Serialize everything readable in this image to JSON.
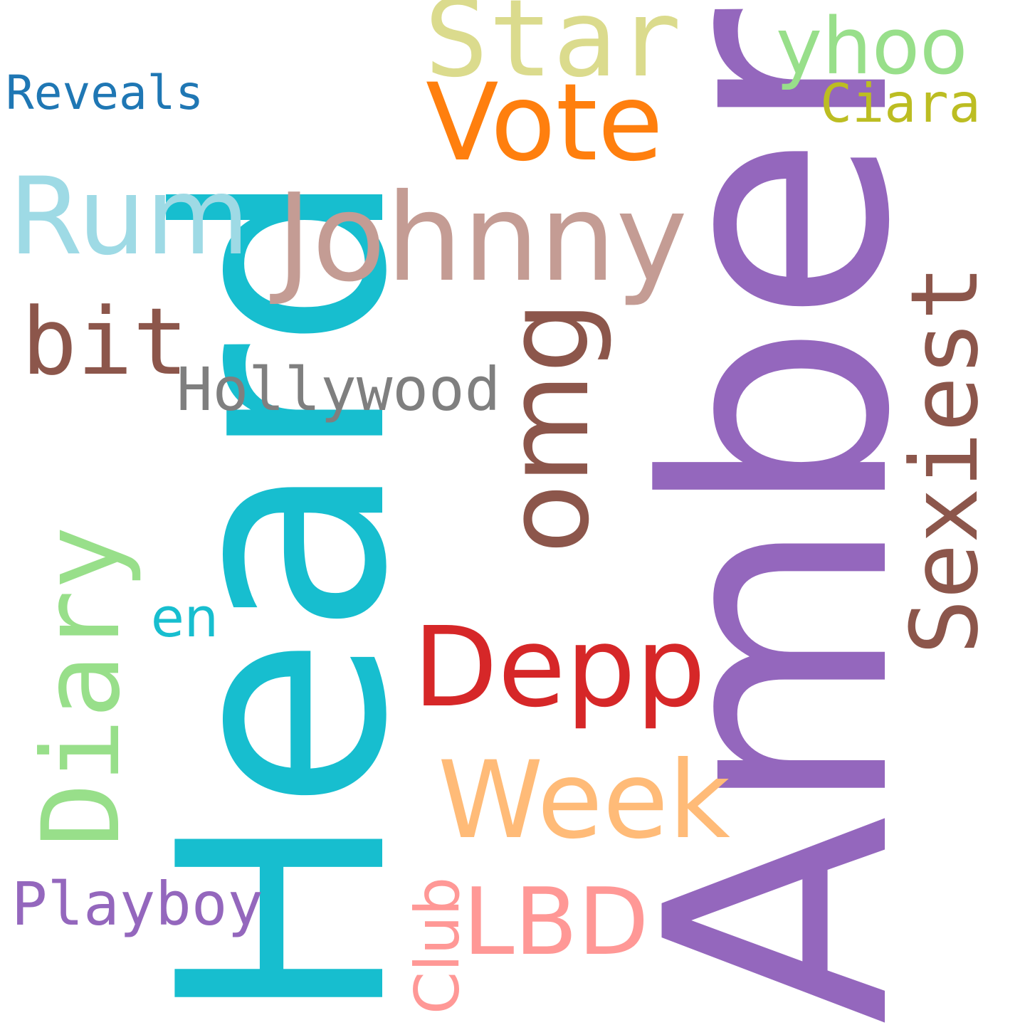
{
  "background": "#ffffff",
  "words": {
    "amber": {
      "text": "Amber",
      "color": "#9467bd"
    },
    "heard": {
      "text": "Heard",
      "color": "#17becf"
    },
    "johnny": {
      "text": "Johnny",
      "color": "#c49c94"
    },
    "star": {
      "text": "Star",
      "color": "#dbdb8d"
    },
    "vote": {
      "text": "Vote",
      "color": "#ff7f0e"
    },
    "rum": {
      "text": "Rum",
      "color": "#9edae5"
    },
    "yhoo": {
      "text": "yhoo",
      "color": "#98df8a"
    },
    "ciara": {
      "text": "Ciara",
      "color": "#bcbd22"
    },
    "reveals": {
      "text": "Reveals",
      "color": "#1f77b4"
    },
    "bit": {
      "text": "bit",
      "color": "#8c564b"
    },
    "hollywood": {
      "text": "Hollywood",
      "color": "#7f7f7f"
    },
    "omg": {
      "text": "omg",
      "color": "#8c564b"
    },
    "sexiest": {
      "text": "Sexiest",
      "color": "#8c564b"
    },
    "diary": {
      "text": "Diary",
      "color": "#98df8a"
    },
    "en": {
      "text": "en",
      "color": "#17becf"
    },
    "depp": {
      "text": "Depp",
      "color": "#d62728"
    },
    "week": {
      "text": "Week",
      "color": "#ffbb78"
    },
    "lbd": {
      "text": "LBD",
      "color": "#ff9896"
    },
    "playboy": {
      "text": "Playboy",
      "color": "#9467bd"
    },
    "club": {
      "text": "Club",
      "color": "#ff9896"
    }
  }
}
